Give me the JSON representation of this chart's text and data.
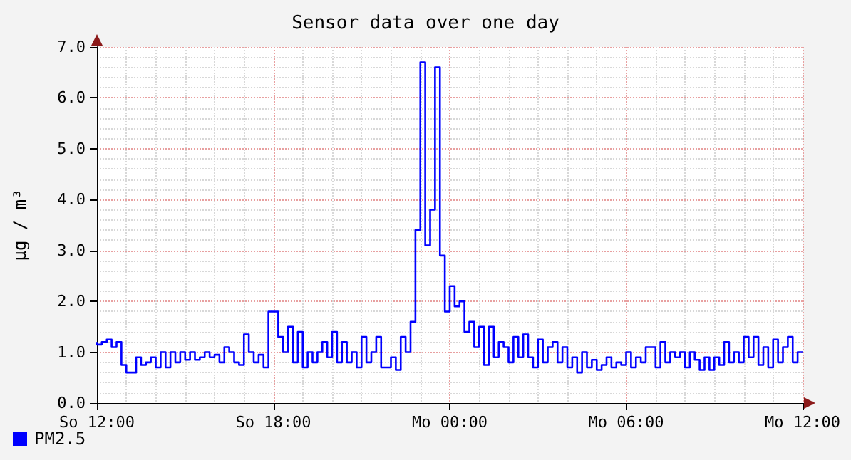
{
  "chart_data": {
    "type": "step",
    "title": "Sensor data over one day",
    "ylabel": "µg / m³",
    "categories": [
      "So 12:00",
      null,
      null,
      null,
      null,
      null,
      null,
      null,
      null,
      null,
      null,
      null,
      null,
      null,
      null,
      null,
      null,
      null,
      null,
      null,
      null,
      null,
      null,
      null,
      null,
      null,
      null,
      null,
      null,
      null,
      null,
      null,
      null,
      null,
      null,
      null,
      "So 18:00",
      null,
      null,
      null,
      null,
      null,
      null,
      null,
      null,
      null,
      null,
      null,
      null,
      null,
      null,
      null,
      null,
      null,
      null,
      null,
      null,
      null,
      null,
      null,
      null,
      null,
      null,
      null,
      null,
      null,
      null,
      null,
      null,
      null,
      null,
      null,
      "Mo 00:00",
      null,
      null,
      null,
      null,
      null,
      null,
      null,
      null,
      null,
      null,
      null,
      null,
      null,
      null,
      null,
      null,
      null,
      null,
      null,
      null,
      null,
      null,
      null,
      null,
      null,
      null,
      null,
      null,
      null,
      null,
      null,
      null,
      null,
      null,
      null,
      "Mo 06:00",
      null,
      null,
      null,
      null,
      null,
      null,
      null,
      null,
      null,
      null,
      null,
      null,
      null,
      null,
      null,
      null,
      null,
      null,
      null,
      null,
      null,
      null,
      null,
      null,
      null,
      null,
      null,
      null,
      null,
      null,
      null,
      null,
      null,
      null,
      null,
      "Mo 12:00"
    ],
    "ylim": [
      0,
      7
    ],
    "yticks": [
      {
        "value": 0,
        "label": "0.0"
      },
      {
        "value": 1,
        "label": "1.0"
      },
      {
        "value": 2,
        "label": "2.0"
      },
      {
        "value": 3,
        "label": "3.0"
      },
      {
        "value": 4,
        "label": "4.0"
      },
      {
        "value": 5,
        "label": "5.0"
      },
      {
        "value": 6,
        "label": "6.0"
      },
      {
        "value": 7,
        "label": "7.0"
      }
    ],
    "grid": true,
    "legend": "bottom left",
    "marker": "none",
    "line_style": "solid",
    "series": [
      {
        "name": "PM2.5",
        "color": "#0000ff",
        "values": [
          1.2,
          1.15,
          1.2,
          1.25,
          1.1,
          1.2,
          0.75,
          0.6,
          0.6,
          0.9,
          0.75,
          0.8,
          0.9,
          0.7,
          1.0,
          0.7,
          1.0,
          0.8,
          1.0,
          0.85,
          1.0,
          0.85,
          0.9,
          1.0,
          0.9,
          0.95,
          0.8,
          1.1,
          1.0,
          0.8,
          0.75,
          1.35,
          1.0,
          0.8,
          0.95,
          0.7,
          1.8,
          1.8,
          1.3,
          1.0,
          1.5,
          0.8,
          1.4,
          0.7,
          1.0,
          0.8,
          1.0,
          1.2,
          0.9,
          1.4,
          0.8,
          1.2,
          0.8,
          1.0,
          0.7,
          1.3,
          0.8,
          1.0,
          1.3,
          0.7,
          0.7,
          0.9,
          0.65,
          1.3,
          1.0,
          1.6,
          3.4,
          6.7,
          3.1,
          3.8,
          6.6,
          2.9,
          1.8,
          2.3,
          1.9,
          2.0,
          1.4,
          1.6,
          1.1,
          1.5,
          0.75,
          1.5,
          0.9,
          1.2,
          1.1,
          0.8,
          1.3,
          0.9,
          1.35,
          0.9,
          0.7,
          1.25,
          0.8,
          1.1,
          1.2,
          0.8,
          1.1,
          0.7,
          0.9,
          0.6,
          1.0,
          0.7,
          0.85,
          0.65,
          0.75,
          0.9,
          0.7,
          0.8,
          0.75,
          1.0,
          0.7,
          0.9,
          0.8,
          1.1,
          1.1,
          0.7,
          1.2,
          0.8,
          1.0,
          0.9,
          1.0,
          0.7,
          1.0,
          0.85,
          0.65,
          0.9,
          0.65,
          0.9,
          0.75,
          1.2,
          0.8,
          1.0,
          0.8,
          1.3,
          0.9,
          1.3,
          0.75,
          1.1,
          0.7,
          1.25,
          0.8,
          1.1,
          1.3,
          0.8,
          1.0
        ]
      }
    ]
  }
}
